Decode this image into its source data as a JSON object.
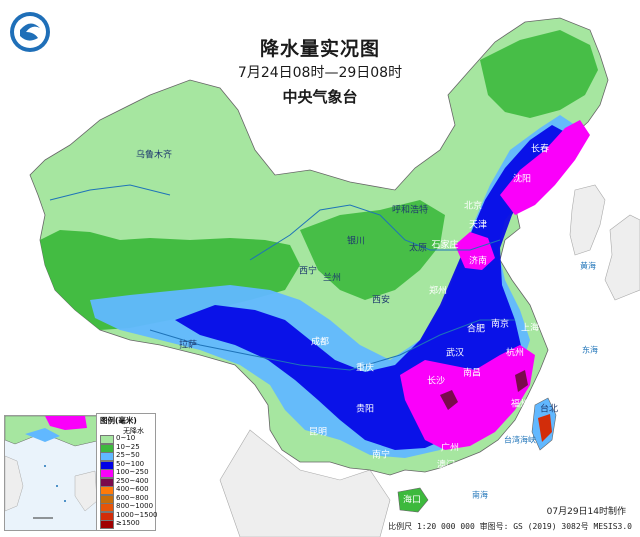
{
  "header": {
    "title": "降水量实况图",
    "period": "7月24日08时—29日08时",
    "agency": "中央气象台"
  },
  "cities": [
    {
      "name": "乌鲁木齐",
      "color": "dark"
    },
    {
      "name": "呼和浩特",
      "color": "dark"
    },
    {
      "name": "长春",
      "color": "light"
    },
    {
      "name": "沈阳",
      "color": "light"
    },
    {
      "name": "北京",
      "color": "light"
    },
    {
      "name": "天津",
      "color": "light"
    },
    {
      "name": "银川",
      "color": "dark"
    },
    {
      "name": "太原",
      "color": "dark"
    },
    {
      "name": "石家庄",
      "color": "light"
    },
    {
      "name": "济南",
      "color": "light"
    },
    {
      "name": "西宁",
      "color": "dark"
    },
    {
      "name": "兰州",
      "color": "dark"
    },
    {
      "name": "郑州",
      "color": "light"
    },
    {
      "name": "西安",
      "color": "dark"
    },
    {
      "name": "拉萨",
      "color": "dark"
    },
    {
      "name": "合肥",
      "color": "light"
    },
    {
      "name": "南京",
      "color": "light"
    },
    {
      "name": "上海",
      "color": "light"
    },
    {
      "name": "成都",
      "color": "light"
    },
    {
      "name": "武汉",
      "color": "light"
    },
    {
      "name": "杭州",
      "color": "light"
    },
    {
      "name": "重庆",
      "color": "light"
    },
    {
      "name": "长沙",
      "color": "light"
    },
    {
      "name": "南昌",
      "color": "light"
    },
    {
      "name": "福州",
      "color": "light"
    },
    {
      "name": "贵阳",
      "color": "light"
    },
    {
      "name": "台北",
      "color": "dark"
    },
    {
      "name": "昆明",
      "color": "light"
    },
    {
      "name": "南宁",
      "color": "light"
    },
    {
      "name": "广州",
      "color": "light"
    },
    {
      "name": "澳门",
      "color": "light"
    },
    {
      "name": "香港",
      "color": "light"
    },
    {
      "name": "海口",
      "color": "light"
    }
  ],
  "seas": [
    "黄海",
    "东海",
    "台湾海峡",
    "南海"
  ],
  "legend": {
    "title": "图例(毫米)",
    "no_rain": "无降水",
    "items": [
      {
        "label": "0~10",
        "color": "#a6e6a0"
      },
      {
        "label": "10~25",
        "color": "#3db93d"
      },
      {
        "label": "25~50",
        "color": "#61b8ff"
      },
      {
        "label": "50~100",
        "color": "#0000e6"
      },
      {
        "label": "100~250",
        "color": "#fa00fa"
      },
      {
        "label": "250~400",
        "color": "#7a0a4c"
      },
      {
        "label": "400~600",
        "color": "#ff7a0a"
      },
      {
        "label": "600~800",
        "color": "#c86e0a"
      },
      {
        "label": "800~1000",
        "color": "#e6550a"
      },
      {
        "label": "1000~1500",
        "color": "#d22d0a"
      },
      {
        "label": "≥1500",
        "color": "#a00000"
      }
    ]
  },
  "footer": {
    "made_at": "07月29日14时制作",
    "scale": "比例尺 1:20 000 000  审图号: GS (2019) 3082号 MESIS3.0"
  },
  "colors": {
    "sea": "#ffffff",
    "land_neighbor": "#eeeeee",
    "no_rain": "#ffffff",
    "light_green": "#a6e6a0",
    "green": "#3db93d",
    "light_blue": "#61b8ff",
    "blue": "#0000e6",
    "magenta": "#fa00fa",
    "rivers": "#1e73b8"
  },
  "icons": {
    "logo": "cma-logo-icon"
  }
}
